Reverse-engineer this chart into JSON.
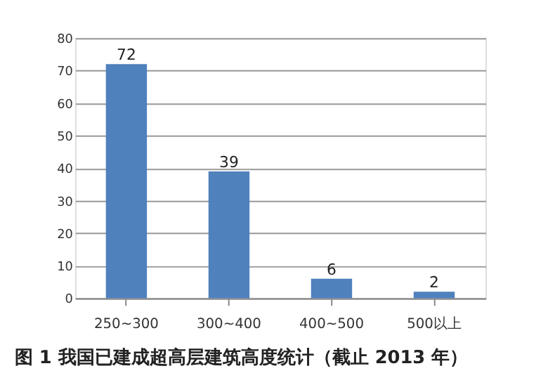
{
  "chart_data": {
    "type": "bar",
    "title": "图 1 我国已建成超高层建筑高度统计（截止 2013 年）",
    "categories": [
      "250~300",
      "300~400",
      "400~500",
      "500以上"
    ],
    "values": [
      72,
      39,
      6,
      2
    ],
    "color": "#4f81bd",
    "ylim": [
      0,
      80
    ],
    "yticks": [
      0,
      10,
      20,
      30,
      40,
      50,
      60,
      70,
      80
    ],
    "grid": "y",
    "data_labels": true
  }
}
